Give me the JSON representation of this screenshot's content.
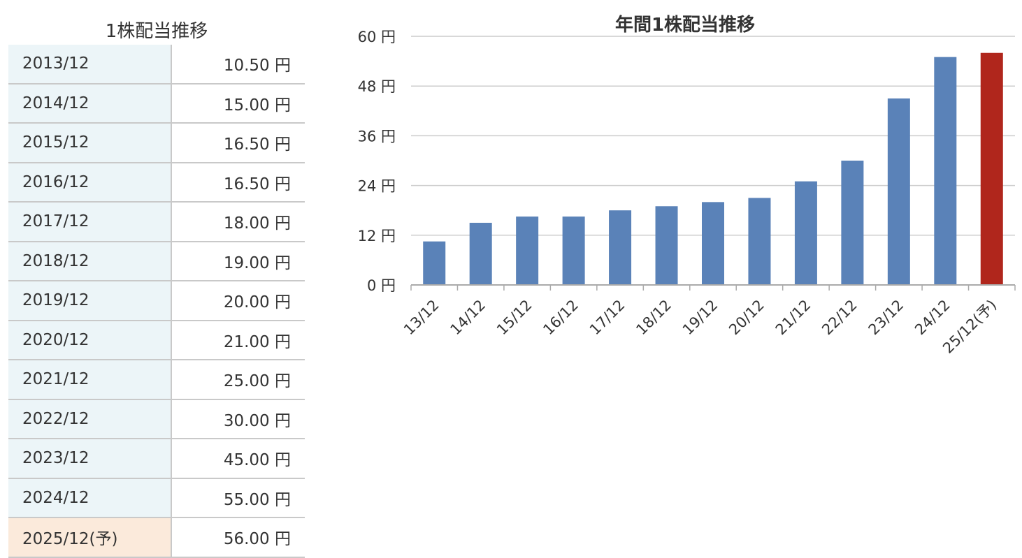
{
  "table": {
    "title": "1株配当推移",
    "rows": [
      {
        "period": "2013/12",
        "amount": "10.50 円"
      },
      {
        "period": "2014/12",
        "amount": "15.00 円"
      },
      {
        "period": "2015/12",
        "amount": "16.50 円"
      },
      {
        "period": "2016/12",
        "amount": "16.50 円"
      },
      {
        "period": "2017/12",
        "amount": "18.00 円"
      },
      {
        "period": "2018/12",
        "amount": "19.00 円"
      },
      {
        "period": "2019/12",
        "amount": "20.00 円"
      },
      {
        "period": "2020/12",
        "amount": "21.00 円"
      },
      {
        "period": "2021/12",
        "amount": "25.00 円"
      },
      {
        "period": "2022/12",
        "amount": "30.00 円"
      },
      {
        "period": "2023/12",
        "amount": "45.00 円"
      },
      {
        "period": "2024/12",
        "amount": "55.00 円"
      },
      {
        "period": "2025/12(予)",
        "amount": "56.00 円",
        "forecast": true
      }
    ]
  },
  "chart_data": {
    "type": "bar",
    "title": "年間1株配当推移",
    "xlabel": "",
    "ylabel": "",
    "categories": [
      "13/12",
      "14/12",
      "15/12",
      "16/12",
      "17/12",
      "18/12",
      "19/12",
      "20/12",
      "21/12",
      "22/12",
      "23/12",
      "24/12",
      "25/12(予)"
    ],
    "values": [
      10.5,
      15,
      16.5,
      16.5,
      18,
      19,
      20,
      21,
      25,
      30,
      45,
      55,
      56
    ],
    "ylim": [
      0,
      60
    ],
    "yticks": [
      0,
      12,
      24,
      36,
      48,
      60
    ],
    "ytick_labels": [
      "0 円",
      "12 円",
      "24 円",
      "36 円",
      "48 円",
      "60 円"
    ],
    "grid": true,
    "colors": {
      "bar": "#5a82b8",
      "forecast_bar": "#b0261c",
      "grid": "#cccccc",
      "axis": "#aaaaaa"
    },
    "forecast_index": 12
  }
}
